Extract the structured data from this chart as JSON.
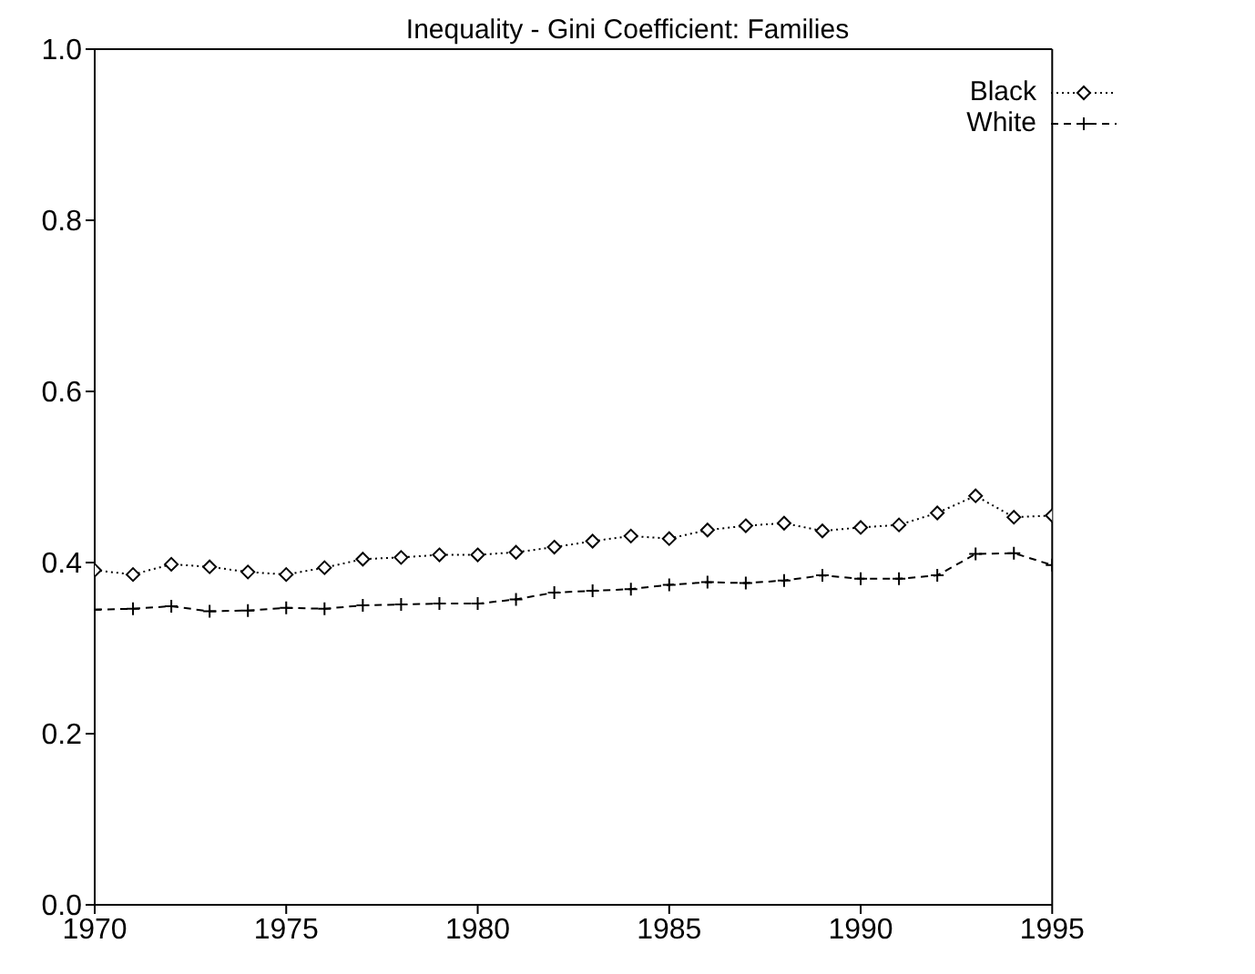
{
  "chart_data": {
    "type": "line",
    "title": "Inequality - Gini Coefficient: Families",
    "x": [
      1970,
      1971,
      1972,
      1973,
      1974,
      1975,
      1976,
      1977,
      1978,
      1979,
      1980,
      1981,
      1982,
      1983,
      1984,
      1985,
      1986,
      1987,
      1988,
      1989,
      1990,
      1991,
      1992,
      1993,
      1994,
      1995
    ],
    "series": [
      {
        "name": "Black",
        "color": "#000000",
        "marker": "diamond",
        "line_style": "dotted",
        "values": [
          0.391,
          0.386,
          0.398,
          0.395,
          0.389,
          0.386,
          0.394,
          0.404,
          0.406,
          0.409,
          0.409,
          0.412,
          0.418,
          0.425,
          0.431,
          0.428,
          0.438,
          0.443,
          0.446,
          0.437,
          0.441,
          0.444,
          0.458,
          0.478,
          0.453,
          0.455
        ]
      },
      {
        "name": "White",
        "color": "#000000",
        "marker": "cross",
        "line_style": "dashed",
        "values": [
          0.345,
          0.346,
          0.349,
          0.343,
          0.344,
          0.347,
          0.346,
          0.35,
          0.351,
          0.352,
          0.352,
          0.357,
          0.365,
          0.367,
          0.369,
          0.374,
          0.377,
          0.376,
          0.379,
          0.385,
          0.381,
          0.381,
          0.385,
          0.41,
          0.411,
          0.397
        ]
      }
    ],
    "xlim": [
      1970,
      1995
    ],
    "xticks": [
      1970,
      1975,
      1980,
      1985,
      1990,
      1995
    ],
    "ylim": [
      0,
      1
    ],
    "yticks": [
      {
        "value": 0,
        "label": "0.0"
      },
      {
        "value": 0.2,
        "label": "0.2"
      },
      {
        "value": 0.4,
        "label": "0.4"
      },
      {
        "value": 0.6,
        "label": "0.6"
      },
      {
        "value": 0.8,
        "label": "0.8"
      },
      {
        "value": 1,
        "label": "1.0"
      }
    ],
    "grid": false,
    "legend": "top right"
  }
}
